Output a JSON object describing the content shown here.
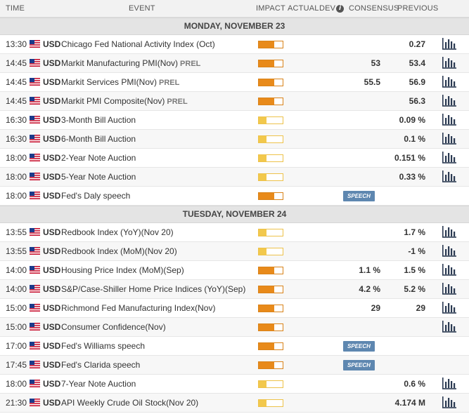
{
  "header": {
    "time": "TIME",
    "event": "EVENT",
    "impact": "IMPACT",
    "actual": "ACTUAL",
    "dev": "DEV",
    "consensus": "CONSENSUS",
    "previous": "PREVIOUS"
  },
  "colors": {
    "high_impact": "#e88a1a",
    "low_impact": "#f2c84c",
    "speech_badge": "#5e87b0",
    "chart_icon": "#2b3a52"
  },
  "days": [
    {
      "label": "MONDAY, NOVEMBER 23",
      "events": [
        {
          "time": "13:30",
          "currency": "USD",
          "name": "Chicago Fed National Activity Index (Oct)",
          "tag": "",
          "impact": "high",
          "consensus": "",
          "previous": "0.27",
          "speech": "",
          "chart": true
        },
        {
          "time": "14:45",
          "currency": "USD",
          "name": "Markit Manufacturing PMI(Nov)",
          "tag": "PREL",
          "impact": "high",
          "consensus": "53",
          "previous": "53.4",
          "speech": "",
          "chart": true
        },
        {
          "time": "14:45",
          "currency": "USD",
          "name": "Markit Services PMI(Nov)",
          "tag": "PREL",
          "impact": "high",
          "consensus": "55.5",
          "previous": "56.9",
          "speech": "",
          "chart": true
        },
        {
          "time": "14:45",
          "currency": "USD",
          "name": "Markit PMI Composite(Nov)",
          "tag": "PREL",
          "impact": "high",
          "consensus": "",
          "previous": "56.3",
          "speech": "",
          "chart": true
        },
        {
          "time": "16:30",
          "currency": "USD",
          "name": "3-Month Bill Auction",
          "tag": "",
          "impact": "low",
          "consensus": "",
          "previous": "0.09 %",
          "speech": "",
          "chart": true
        },
        {
          "time": "16:30",
          "currency": "USD",
          "name": "6-Month Bill Auction",
          "tag": "",
          "impact": "low",
          "consensus": "",
          "previous": "0.1 %",
          "speech": "",
          "chart": true
        },
        {
          "time": "18:00",
          "currency": "USD",
          "name": "2-Year Note Auction",
          "tag": "",
          "impact": "low",
          "consensus": "",
          "previous": "0.151 %",
          "speech": "",
          "chart": true
        },
        {
          "time": "18:00",
          "currency": "USD",
          "name": "5-Year Note Auction",
          "tag": "",
          "impact": "low",
          "consensus": "",
          "previous": "0.33 %",
          "speech": "",
          "chart": true
        },
        {
          "time": "18:00",
          "currency": "USD",
          "name": "Fed's Daly speech",
          "tag": "",
          "impact": "high",
          "consensus": "",
          "previous": "",
          "speech": "SPEECH",
          "chart": false
        }
      ]
    },
    {
      "label": "TUESDAY, NOVEMBER 24",
      "events": [
        {
          "time": "13:55",
          "currency": "USD",
          "name": "Redbook Index (YoY)(Nov 20)",
          "tag": "",
          "impact": "low",
          "consensus": "",
          "previous": "1.7 %",
          "speech": "",
          "chart": true
        },
        {
          "time": "13:55",
          "currency": "USD",
          "name": "Redbook Index (MoM)(Nov 20)",
          "tag": "",
          "impact": "low",
          "consensus": "",
          "previous": "-1 %",
          "speech": "",
          "chart": true
        },
        {
          "time": "14:00",
          "currency": "USD",
          "name": "Housing Price Index (MoM)(Sep)",
          "tag": "",
          "impact": "high",
          "consensus": "1.1 %",
          "previous": "1.5 %",
          "speech": "",
          "chart": true
        },
        {
          "time": "14:00",
          "currency": "USD",
          "name": "S&P/Case-Shiller Home Price Indices (YoY)(Sep)",
          "tag": "",
          "impact": "high",
          "consensus": "4.2 %",
          "previous": "5.2 %",
          "speech": "",
          "chart": true
        },
        {
          "time": "15:00",
          "currency": "USD",
          "name": "Richmond Fed Manufacturing Index(Nov)",
          "tag": "",
          "impact": "high",
          "consensus": "29",
          "previous": "29",
          "speech": "",
          "chart": true
        },
        {
          "time": "15:00",
          "currency": "USD",
          "name": "Consumer Confidence(Nov)",
          "tag": "",
          "impact": "high",
          "consensus": "",
          "previous": "",
          "speech": "",
          "chart": true
        },
        {
          "time": "17:00",
          "currency": "USD",
          "name": "Fed's Williams speech",
          "tag": "",
          "impact": "high",
          "consensus": "",
          "previous": "",
          "speech": "SPEECH",
          "chart": false
        },
        {
          "time": "17:45",
          "currency": "USD",
          "name": "Fed's Clarida speech",
          "tag": "",
          "impact": "high",
          "consensus": "",
          "previous": "",
          "speech": "SPEECH",
          "chart": false
        },
        {
          "time": "18:00",
          "currency": "USD",
          "name": "7-Year Note Auction",
          "tag": "",
          "impact": "low",
          "consensus": "",
          "previous": "0.6 %",
          "speech": "",
          "chart": true
        },
        {
          "time": "21:30",
          "currency": "USD",
          "name": "API Weekly Crude Oil Stock(Nov 20)",
          "tag": "",
          "impact": "low",
          "consensus": "",
          "previous": "4.174 M",
          "speech": "",
          "chart": true
        }
      ]
    }
  ]
}
